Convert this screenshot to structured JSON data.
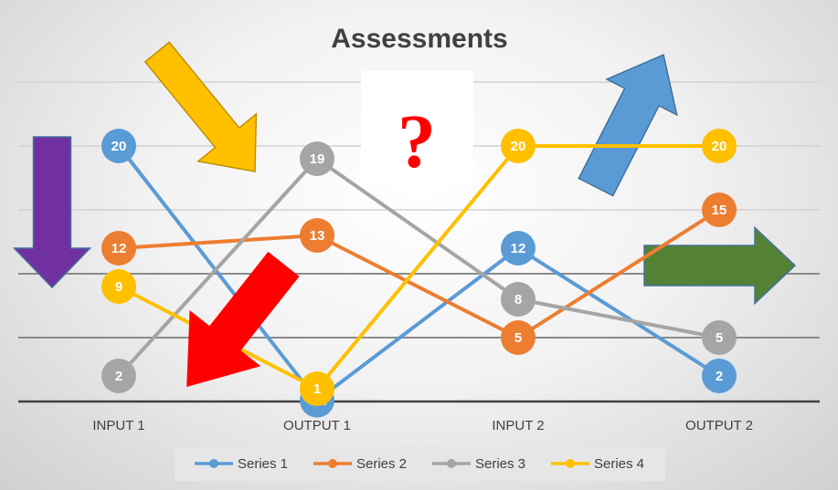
{
  "chart_data": {
    "type": "line",
    "title": "Assessments",
    "categories": [
      "INPUT 1",
      "OUTPUT 1",
      "INPUT 2",
      "OUTPUT 2"
    ],
    "series": [
      {
        "name": "Series 1",
        "color": "#5b9bd5",
        "values": [
          20,
          0.1,
          12,
          2
        ]
      },
      {
        "name": "Series 2",
        "color": "#ed7d31",
        "values": [
          12,
          13,
          5,
          15
        ]
      },
      {
        "name": "Series 3",
        "color": "#a5a5a5",
        "values": [
          2,
          19,
          8,
          5
        ]
      },
      {
        "name": "Series 4",
        "color": "#ffc000",
        "values": [
          9,
          1,
          20,
          20
        ]
      }
    ],
    "ylim": [
      0,
      25
    ],
    "y_gridline_step": 5,
    "grid": true,
    "y_axis_labels_shown": false,
    "data_labels": true,
    "legend": "bottom"
  },
  "annotations": {
    "question_mark": "?",
    "arrows": [
      {
        "name": "purple-down-arrow",
        "color": "#7030a0"
      },
      {
        "name": "yellow-down-right-arrow",
        "color": "#ffc000"
      },
      {
        "name": "red-down-left-arrow",
        "color": "#ff0000"
      },
      {
        "name": "blue-up-right-arrow",
        "color": "#5b9bd5"
      },
      {
        "name": "green-right-arrow",
        "color": "#548235"
      }
    ]
  }
}
